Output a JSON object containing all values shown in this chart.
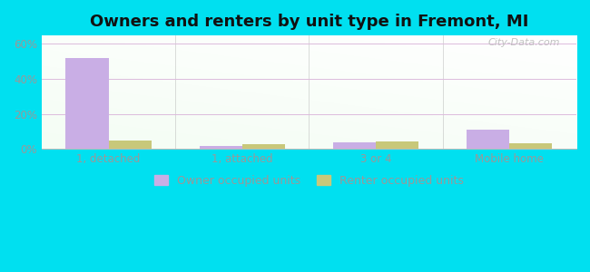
{
  "title": "Owners and renters by unit type in Fremont, MI",
  "categories": [
    "1, detached",
    "1, attached",
    "3 or 4",
    "Mobile home"
  ],
  "owner_values": [
    52,
    1.5,
    3.5,
    11
  ],
  "renter_values": [
    5,
    2.5,
    4.5,
    3
  ],
  "owner_color": "#c9aee5",
  "renter_color": "#c8c87a",
  "ylim": [
    0,
    65
  ],
  "yticks": [
    0,
    20,
    40,
    60
  ],
  "ytick_labels": [
    "0%",
    "20%",
    "40%",
    "60%"
  ],
  "outer_bg": "#00e0f0",
  "bar_width": 0.32,
  "legend_labels": [
    "Owner occupied units",
    "Renter occupied units"
  ],
  "watermark": "City-Data.com",
  "title_fontsize": 13,
  "axis_color": "#999999",
  "grid_color": "#ddbbdd",
  "separator_color": "#bbbbbb"
}
